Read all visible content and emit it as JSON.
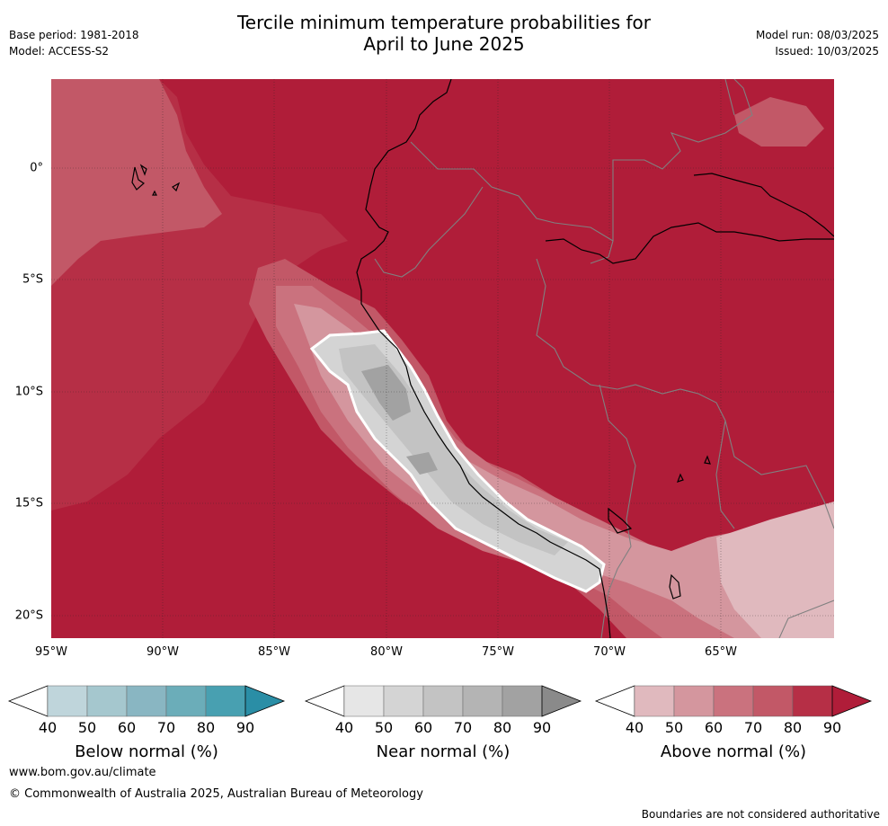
{
  "header": {
    "title_line1": "Tercile minimum temperature probabilities for",
    "title_line2": "April to June 2025",
    "base_period": "Base period: 1981-2018",
    "model": "Model: ACCESS-S2",
    "model_run": "Model run: 08/03/2025",
    "issued": "Issued: 10/03/2025"
  },
  "map": {
    "lat_labels": [
      "0°",
      "5°S",
      "10°S",
      "15°S",
      "20°S"
    ],
    "lon_labels": [
      "95°W",
      "90°W",
      "85°W",
      "80°W",
      "75°W",
      "70°W",
      "65°W"
    ],
    "background_color": "#b01d39"
  },
  "colorbars": [
    {
      "title": "Below normal (%)",
      "ticks": [
        "40",
        "50",
        "60",
        "70",
        "80",
        "90"
      ],
      "colors": [
        "#bfd5db",
        "#a5c7ce",
        "#89b6c2",
        "#6badb9",
        "#48a0b1",
        "#2a8ea6"
      ]
    },
    {
      "title": "Near normal (%)",
      "ticks": [
        "40",
        "50",
        "60",
        "70",
        "80",
        "90"
      ],
      "colors": [
        "#e6e6e6",
        "#d4d4d4",
        "#c3c3c3",
        "#b4b4b4",
        "#a2a2a2",
        "#8a8a8a"
      ]
    },
    {
      "title": "Above normal (%)",
      "ticks": [
        "40",
        "50",
        "60",
        "70",
        "80",
        "90"
      ],
      "colors": [
        "#e0b9be",
        "#d4969e",
        "#ca727e",
        "#c25867",
        "#b62f46",
        "#b01d39"
      ]
    }
  ],
  "footer": {
    "url": "www.bom.gov.au/climate",
    "copyright": "© Commonwealth of Australia 2025, Australian Bureau of Meteorology",
    "disclaimer": "Boundaries are not considered authoritative"
  }
}
